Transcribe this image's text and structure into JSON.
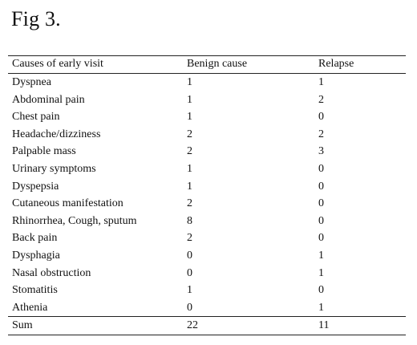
{
  "figure": {
    "title": "Fig 3."
  },
  "table": {
    "headers": [
      "Causes of early visit",
      "Benign cause",
      "Relapse"
    ],
    "rows": [
      [
        "Dyspnea",
        "1",
        "1"
      ],
      [
        "Abdominal pain",
        "1",
        "2"
      ],
      [
        "Chest pain",
        "1",
        "0"
      ],
      [
        "Headache/dizziness",
        "2",
        "2"
      ],
      [
        "Palpable mass",
        "2",
        "3"
      ],
      [
        "Urinary symptoms",
        "1",
        "0"
      ],
      [
        "Dyspepsia",
        "1",
        "0"
      ],
      [
        "Cutaneous manifestation",
        "2",
        "0"
      ],
      [
        "Rhinorrhea, Cough, sputum",
        "8",
        "0"
      ],
      [
        "Back pain",
        "2",
        "0"
      ],
      [
        "Dysphagia",
        "0",
        "1"
      ],
      [
        "Nasal obstruction",
        "0",
        "1"
      ],
      [
        "Stomatitis",
        "1",
        "0"
      ],
      [
        "Athenia",
        "0",
        "1"
      ]
    ],
    "sum": [
      "Sum",
      "22",
      "11"
    ]
  }
}
